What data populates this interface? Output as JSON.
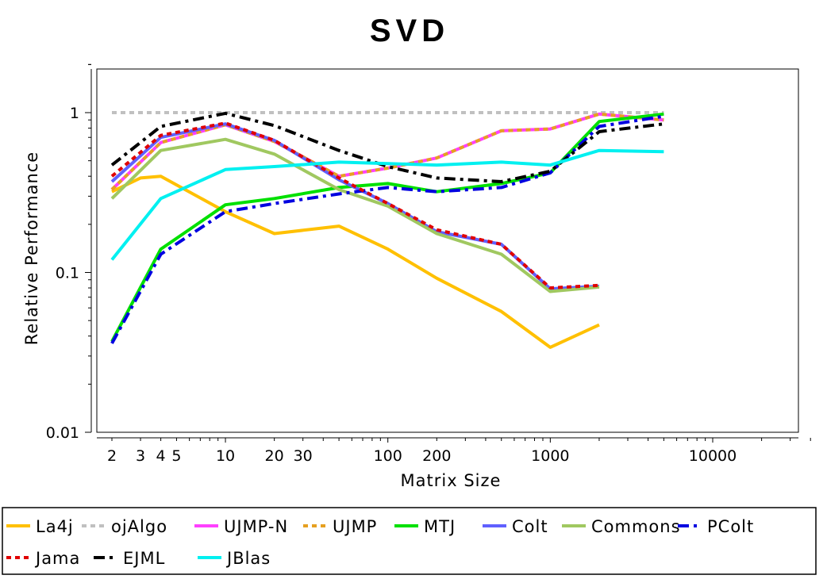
{
  "chart_data": {
    "type": "line",
    "title": "SVD",
    "xlabel": "Matrix Size",
    "ylabel": "Relative Performance",
    "xscale": "log",
    "yscale": "log",
    "xlim": [
      1.7,
      40000
    ],
    "ylim": [
      0.01,
      2
    ],
    "x_ticks": [
      {
        "value": 2,
        "label": "2"
      },
      {
        "value": 3,
        "label": "3"
      },
      {
        "value": 4,
        "label": "4"
      },
      {
        "value": 5,
        "label": "5"
      },
      {
        "value": 10,
        "label": "10"
      },
      {
        "value": 20,
        "label": "20"
      },
      {
        "value": 30,
        "label": "30"
      },
      {
        "value": 100,
        "label": "100"
      },
      {
        "value": 200,
        "label": "200"
      },
      {
        "value": 1000,
        "label": "1000"
      },
      {
        "value": 10000,
        "label": "10000"
      }
    ],
    "y_ticks": [
      {
        "value": 1,
        "label": "1"
      },
      {
        "value": 0.1,
        "label": "0.1"
      },
      {
        "value": 0.01,
        "label": "0.01"
      }
    ],
    "grid": false,
    "legend_position": "bottom",
    "series": [
      {
        "name": "La4j",
        "color": "#ffc000",
        "dash": "solid",
        "points": [
          [
            2,
            0.32
          ],
          [
            3,
            0.39
          ],
          [
            4,
            0.4
          ],
          [
            10,
            0.24
          ],
          [
            20,
            0.175
          ],
          [
            50,
            0.195
          ],
          [
            100,
            0.14
          ],
          [
            200,
            0.092
          ],
          [
            500,
            0.057
          ],
          [
            1000,
            0.034
          ],
          [
            2000,
            0.047
          ]
        ]
      },
      {
        "name": "ojAlgo",
        "color": "#c0c0c0",
        "dash": "dot",
        "points": [
          [
            2,
            1.0
          ],
          [
            5000,
            1.0
          ]
        ]
      },
      {
        "name": "UJMP-N",
        "color": "#ff40ff",
        "dash": "solid",
        "points": [
          [
            2,
            0.33
          ],
          [
            4,
            0.65
          ],
          [
            10,
            0.84
          ],
          [
            20,
            0.66
          ],
          [
            50,
            0.4
          ],
          [
            100,
            0.45
          ],
          [
            200,
            0.52
          ],
          [
            500,
            0.77
          ],
          [
            1000,
            0.79
          ],
          [
            2000,
            0.98
          ],
          [
            5000,
            0.9
          ]
        ]
      },
      {
        "name": "UJMP",
        "color": "#e6a020",
        "dash": "dot",
        "points": [
          [
            2,
            0.33
          ],
          [
            4,
            0.65
          ],
          [
            10,
            0.84
          ],
          [
            20,
            0.66
          ],
          [
            50,
            0.4
          ],
          [
            100,
            0.45
          ],
          [
            200,
            0.52
          ],
          [
            500,
            0.77
          ],
          [
            1000,
            0.79
          ],
          [
            2000,
            0.98
          ],
          [
            5000,
            0.9
          ]
        ]
      },
      {
        "name": "MTJ",
        "color": "#00e000",
        "dash": "solid",
        "points": [
          [
            2,
            0.037
          ],
          [
            4,
            0.14
          ],
          [
            10,
            0.265
          ],
          [
            20,
            0.29
          ],
          [
            50,
            0.34
          ],
          [
            100,
            0.36
          ],
          [
            200,
            0.32
          ],
          [
            500,
            0.36
          ],
          [
            1000,
            0.42
          ],
          [
            2000,
            0.88
          ],
          [
            5000,
            0.98
          ]
        ]
      },
      {
        "name": "Colt",
        "color": "#6060ff",
        "dash": "solid",
        "points": [
          [
            2,
            0.37
          ],
          [
            4,
            0.7
          ],
          [
            10,
            0.85
          ],
          [
            20,
            0.67
          ],
          [
            50,
            0.38
          ],
          [
            100,
            0.27
          ],
          [
            200,
            0.18
          ],
          [
            500,
            0.15
          ],
          [
            1000,
            0.079
          ],
          [
            2000,
            0.082
          ]
        ]
      },
      {
        "name": "Commons",
        "color": "#a0c860",
        "dash": "solid",
        "points": [
          [
            2,
            0.29
          ],
          [
            4,
            0.58
          ],
          [
            10,
            0.68
          ],
          [
            20,
            0.55
          ],
          [
            50,
            0.33
          ],
          [
            100,
            0.26
          ],
          [
            200,
            0.175
          ],
          [
            500,
            0.13
          ],
          [
            1000,
            0.076
          ],
          [
            2000,
            0.081
          ]
        ]
      },
      {
        "name": "PColt",
        "color": "#0000e0",
        "dash": "dashdot",
        "points": [
          [
            2,
            0.036
          ],
          [
            4,
            0.13
          ],
          [
            10,
            0.24
          ],
          [
            20,
            0.27
          ],
          [
            50,
            0.31
          ],
          [
            100,
            0.34
          ],
          [
            200,
            0.32
          ],
          [
            500,
            0.34
          ],
          [
            1000,
            0.42
          ],
          [
            2000,
            0.82
          ],
          [
            5000,
            0.95
          ]
        ]
      },
      {
        "name": "Jama",
        "color": "#e00000",
        "dash": "dot",
        "points": [
          [
            2,
            0.4
          ],
          [
            4,
            0.72
          ],
          [
            10,
            0.86
          ],
          [
            20,
            0.67
          ],
          [
            50,
            0.39
          ],
          [
            100,
            0.27
          ],
          [
            200,
            0.185
          ],
          [
            500,
            0.15
          ],
          [
            1000,
            0.08
          ],
          [
            2000,
            0.083
          ]
        ]
      },
      {
        "name": "EJML",
        "color": "#000000",
        "dash": "dashdot",
        "points": [
          [
            2,
            0.47
          ],
          [
            4,
            0.82
          ],
          [
            10,
            0.99
          ],
          [
            20,
            0.83
          ],
          [
            50,
            0.58
          ],
          [
            100,
            0.46
          ],
          [
            200,
            0.39
          ],
          [
            500,
            0.37
          ],
          [
            1000,
            0.43
          ],
          [
            2000,
            0.76
          ],
          [
            5000,
            0.85
          ]
        ]
      },
      {
        "name": "JBlas",
        "color": "#00f0f0",
        "dash": "solid",
        "points": [
          [
            2,
            0.12
          ],
          [
            4,
            0.29
          ],
          [
            10,
            0.44
          ],
          [
            20,
            0.46
          ],
          [
            50,
            0.49
          ],
          [
            100,
            0.48
          ],
          [
            200,
            0.47
          ],
          [
            500,
            0.49
          ],
          [
            1000,
            0.47
          ],
          [
            2000,
            0.58
          ],
          [
            5000,
            0.57
          ]
        ]
      }
    ]
  }
}
